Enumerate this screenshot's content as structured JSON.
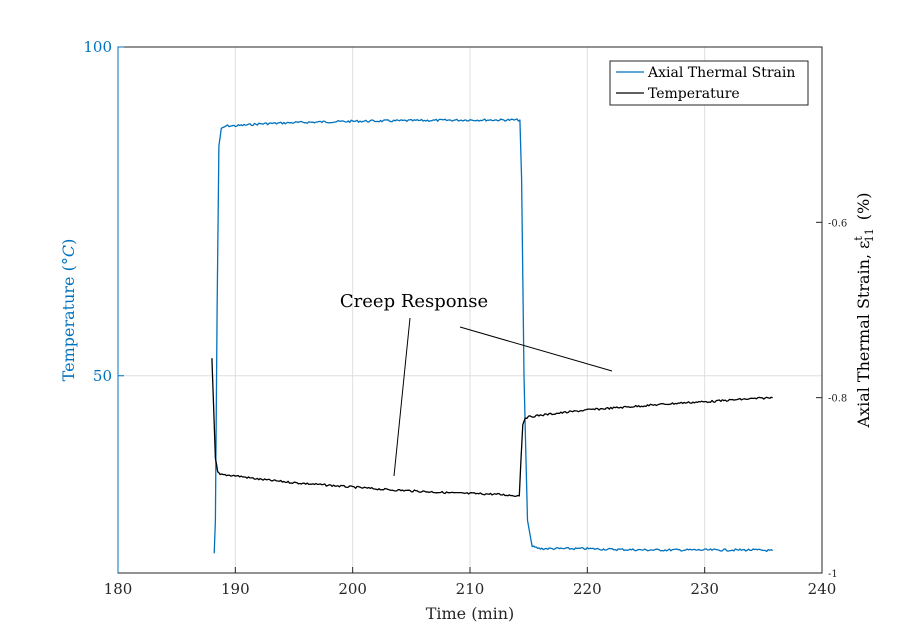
{
  "chart_data": {
    "type": "line",
    "xlabel": "Time (min)",
    "ylabel_left": "Temperature (°C)",
    "ylabel_right": "Axial Thermal Strain, ε",
    "ylabel_right_sup": "t",
    "ylabel_right_sub": "11",
    "ylabel_right_unit": "(%)",
    "xlim": [
      180,
      240
    ],
    "xticks": [
      "180",
      "190",
      "200",
      "210",
      "220",
      "230",
      "240"
    ],
    "ylim_left": [
      20,
      100
    ],
    "yticks_left": [
      {
        "value": 50,
        "label": "50"
      },
      {
        "value": 100,
        "label": "100"
      }
    ],
    "ylim_right": [
      -1,
      -0.4
    ],
    "yticks_right": [
      {
        "value": -1,
        "label": "-1"
      },
      {
        "value": -0.8,
        "label": "-0.8"
      },
      {
        "value": -0.6,
        "label": "-0.6"
      }
    ],
    "grid": true,
    "legend_position": "top-right",
    "annotation": "Creep Response",
    "colors": {
      "strain": "#0072BD",
      "temperature": "#000000",
      "axis_right": "#262626"
    },
    "series": [
      {
        "name": "Axial Thermal Strain",
        "axis": "left",
        "x": [
          188.2,
          188.3,
          188.45,
          188.6,
          188.8,
          189.2,
          190,
          192,
          195,
          200,
          205,
          210,
          213,
          214.25,
          214.4,
          214.6,
          214.9,
          215.3,
          216,
          218,
          220,
          222,
          225,
          228,
          230,
          232,
          234,
          235.8
        ],
        "y": [
          23,
          28,
          60,
          85,
          87.5,
          88,
          88,
          88.3,
          88.5,
          88.7,
          88.8,
          88.9,
          88.9,
          88.9,
          80,
          50,
          28,
          24,
          23.7,
          23.7,
          23.7,
          23.6,
          23.5,
          23.5,
          23.5,
          23.5,
          23.5,
          23.4
        ]
      },
      {
        "name": "Temperature",
        "axis": "right",
        "x": [
          188.0,
          188.15,
          188.3,
          188.5,
          188.7,
          189,
          190,
          192,
          195,
          198,
          200,
          203,
          206,
          209,
          212,
          214.2,
          214.35,
          214.5,
          214.7,
          215,
          216,
          218,
          220,
          222,
          225,
          228,
          231,
          233,
          235.8
        ],
        "y": [
          -0.755,
          -0.81,
          -0.87,
          -0.885,
          -0.888,
          -0.888,
          -0.889,
          -0.893,
          -0.897,
          -0.9,
          -0.902,
          -0.905,
          -0.907,
          -0.909,
          -0.91,
          -0.912,
          -0.87,
          -0.83,
          -0.823,
          -0.822,
          -0.82,
          -0.817,
          -0.814,
          -0.812,
          -0.809,
          -0.806,
          -0.804,
          -0.802,
          -0.8
        ]
      }
    ]
  }
}
